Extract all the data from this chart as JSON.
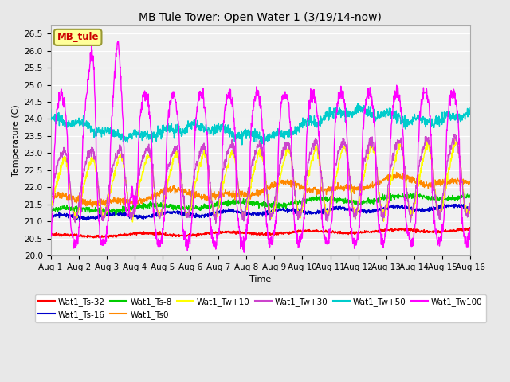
{
  "title": "MB Tule Tower: Open Water 1 (3/19/14-now)",
  "xlabel": "Time",
  "ylabel": "Temperature (C)",
  "ylim": [
    20.0,
    26.75
  ],
  "yticks": [
    20.0,
    20.5,
    21.0,
    21.5,
    22.0,
    22.5,
    23.0,
    23.5,
    24.0,
    24.5,
    25.0,
    25.5,
    26.0,
    26.5
  ],
  "xtick_labels": [
    "Aug 1",
    "Aug 2",
    "Aug 3",
    "Aug 4",
    "Aug 5",
    "Aug 6",
    "Aug 7",
    "Aug 8",
    "Aug 9",
    "Aug 10",
    "Aug 11",
    "Aug 12",
    "Aug 13",
    "Aug 14",
    "Aug 15",
    "Aug 16"
  ],
  "series_colors": {
    "Wat1_Ts-32": "#ff0000",
    "Wat1_Ts-16": "#0000cc",
    "Wat1_Ts-8": "#00cc00",
    "Wat1_Ts0": "#ff8800",
    "Wat1_Tw+10": "#ffff00",
    "Wat1_Tw+30": "#cc44cc",
    "Wat1_Tw+50": "#00cccc",
    "Wat1_Tw100": "#ff00ff"
  },
  "annotation_text": "MB_tule",
  "annotation_color": "#cc0000",
  "annotation_bg": "#ffff99",
  "background_color": "#e8e8e8",
  "plot_bg_color": "#f0f0f0",
  "grid_color": "#ffffff",
  "days": 15
}
